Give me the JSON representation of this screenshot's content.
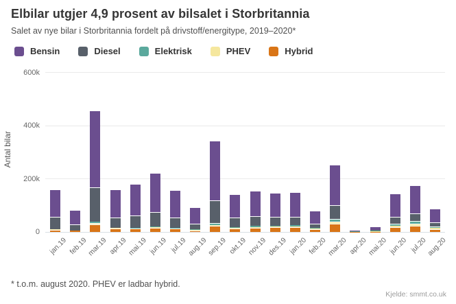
{
  "header": {
    "title": "Elbilar utgjer 4,9 prosent av bilsalet i Storbritannia",
    "subtitle": "Salet av nye bilar i Storbritannia fordelt på drivstoff/energitype, 2019–2020*"
  },
  "chart_data": {
    "type": "bar",
    "stacked": true,
    "title": "Elbilar utgjer 4,9 prosent av bilsalet i Storbritannia",
    "subtitle": "Salet av nye bilar i Storbritannia fordelt på drivstoff/energitype, 2019–2020*",
    "xlabel": "",
    "ylabel": "Antal bilar",
    "values_unit": "thousands of cars",
    "legend_position": "top",
    "grid": "horizontal",
    "ylim": [
      0,
      620
    ],
    "yticks": [
      {
        "label": "0",
        "value": 0
      },
      {
        "label": "200k",
        "value": 200
      },
      {
        "label": "400k",
        "value": 400
      },
      {
        "label": "600k",
        "value": 600
      }
    ],
    "categories": [
      "jan.19",
      "feb.19",
      "mar.19",
      "apr.19",
      "mai.19",
      "jun.19",
      "jul.19",
      "aug.19",
      "sep.19",
      "okt.19",
      "nov.19",
      "des.19",
      "jan.20",
      "feb.20",
      "mar.20",
      "apr.20",
      "mai.20",
      "jun.20",
      "jul.20",
      "aug.20"
    ],
    "series": [
      {
        "name": "Bensin",
        "color": "#6b4e8f",
        "values": [
          104,
          53,
          290,
          106,
          119,
          147,
          103,
          60,
          223,
          88,
          97,
          92,
          91,
          49,
          153,
          1.4,
          12.9,
          88,
          105,
          52
        ]
      },
      {
        "name": "Diesel",
        "color": "#58606a",
        "values": [
          46,
          23,
          130,
          39,
          47,
          55,
          38,
          22,
          86,
          36,
          37,
          33,
          32,
          16,
          51,
          1.1,
          3.4,
          26,
          29,
          14
        ]
      },
      {
        "name": "Elektrisk",
        "color": "#5ba99d",
        "values": [
          1.3,
          0.7,
          3.9,
          1.5,
          2.2,
          2.5,
          2.3,
          3.1,
          7.7,
          3.2,
          4.7,
          3.6,
          4.1,
          2.5,
          11.7,
          1.4,
          2.4,
          8.9,
          9.9,
          6.6
        ]
      },
      {
        "name": "PHEV",
        "color": "#f5e79e",
        "values": [
          1.9,
          1.1,
          6.1,
          1.9,
          2.0,
          2.0,
          1.8,
          0.9,
          3.1,
          2.2,
          2.5,
          2.5,
          4.8,
          2.1,
          6.8,
          0.1,
          0.6,
          5.1,
          6.7,
          3.6
        ]
      },
      {
        "name": "Hybrid",
        "color": "#d97517",
        "values": [
          8,
          4,
          28,
          13,
          12,
          16,
          12,
          6,
          23,
          14,
          15,
          17,
          17,
          10,
          31,
          0.3,
          1.2,
          17,
          24,
          11
        ]
      }
    ]
  },
  "footer": {
    "note": "* t.o.m. august 2020. PHEV er ladbar hybrid.",
    "source": "Kjelde: smmt.co.uk"
  }
}
